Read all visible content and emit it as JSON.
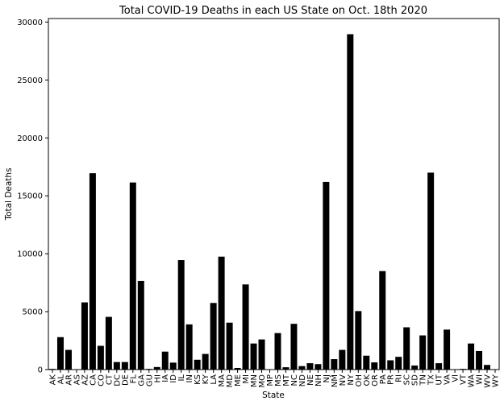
{
  "chart_data": {
    "type": "bar",
    "title": "Total COVID-19 Deaths in each US State on Oct. 18th 2020",
    "xlabel": "State",
    "ylabel": "Total Deaths",
    "ylim": [
      0,
      30000
    ],
    "yticks": [
      0,
      5000,
      10000,
      15000,
      20000,
      25000,
      30000
    ],
    "grid": false,
    "bar_color": "#000000",
    "categories": [
      "AK",
      "AL",
      "AR",
      "AS",
      "AZ",
      "CA",
      "CO",
      "CT",
      "DC",
      "DE",
      "FL",
      "GA",
      "GU",
      "HI",
      "IA",
      "ID",
      "IL",
      "IN",
      "KS",
      "KY",
      "LA",
      "MA",
      "MD",
      "ME",
      "MI",
      "MN",
      "MO",
      "MP",
      "MS",
      "MT",
      "NC",
      "ND",
      "NE",
      "NH",
      "NJ",
      "NM",
      "NV",
      "NY",
      "OH",
      "OK",
      "OR",
      "PA",
      "PR",
      "RI",
      "SC",
      "SD",
      "TN",
      "TX",
      "UT",
      "VA",
      "VI",
      "VT",
      "WA",
      "WI",
      "WV",
      "WY"
    ],
    "values": [
      60,
      2800,
      1700,
      0,
      5800,
      16950,
      2050,
      4550,
      650,
      650,
      16150,
      7650,
      60,
      220,
      1550,
      600,
      9450,
      3900,
      850,
      1350,
      5750,
      9750,
      4050,
      140,
      7350,
      2250,
      2600,
      2,
      3150,
      200,
      3950,
      300,
      550,
      470,
      16200,
      900,
      1700,
      28950,
      5050,
      1200,
      620,
      8500,
      800,
      1100,
      3650,
      350,
      2950,
      17000,
      550,
      3450,
      20,
      60,
      2250,
      1600,
      400,
      30
    ]
  }
}
